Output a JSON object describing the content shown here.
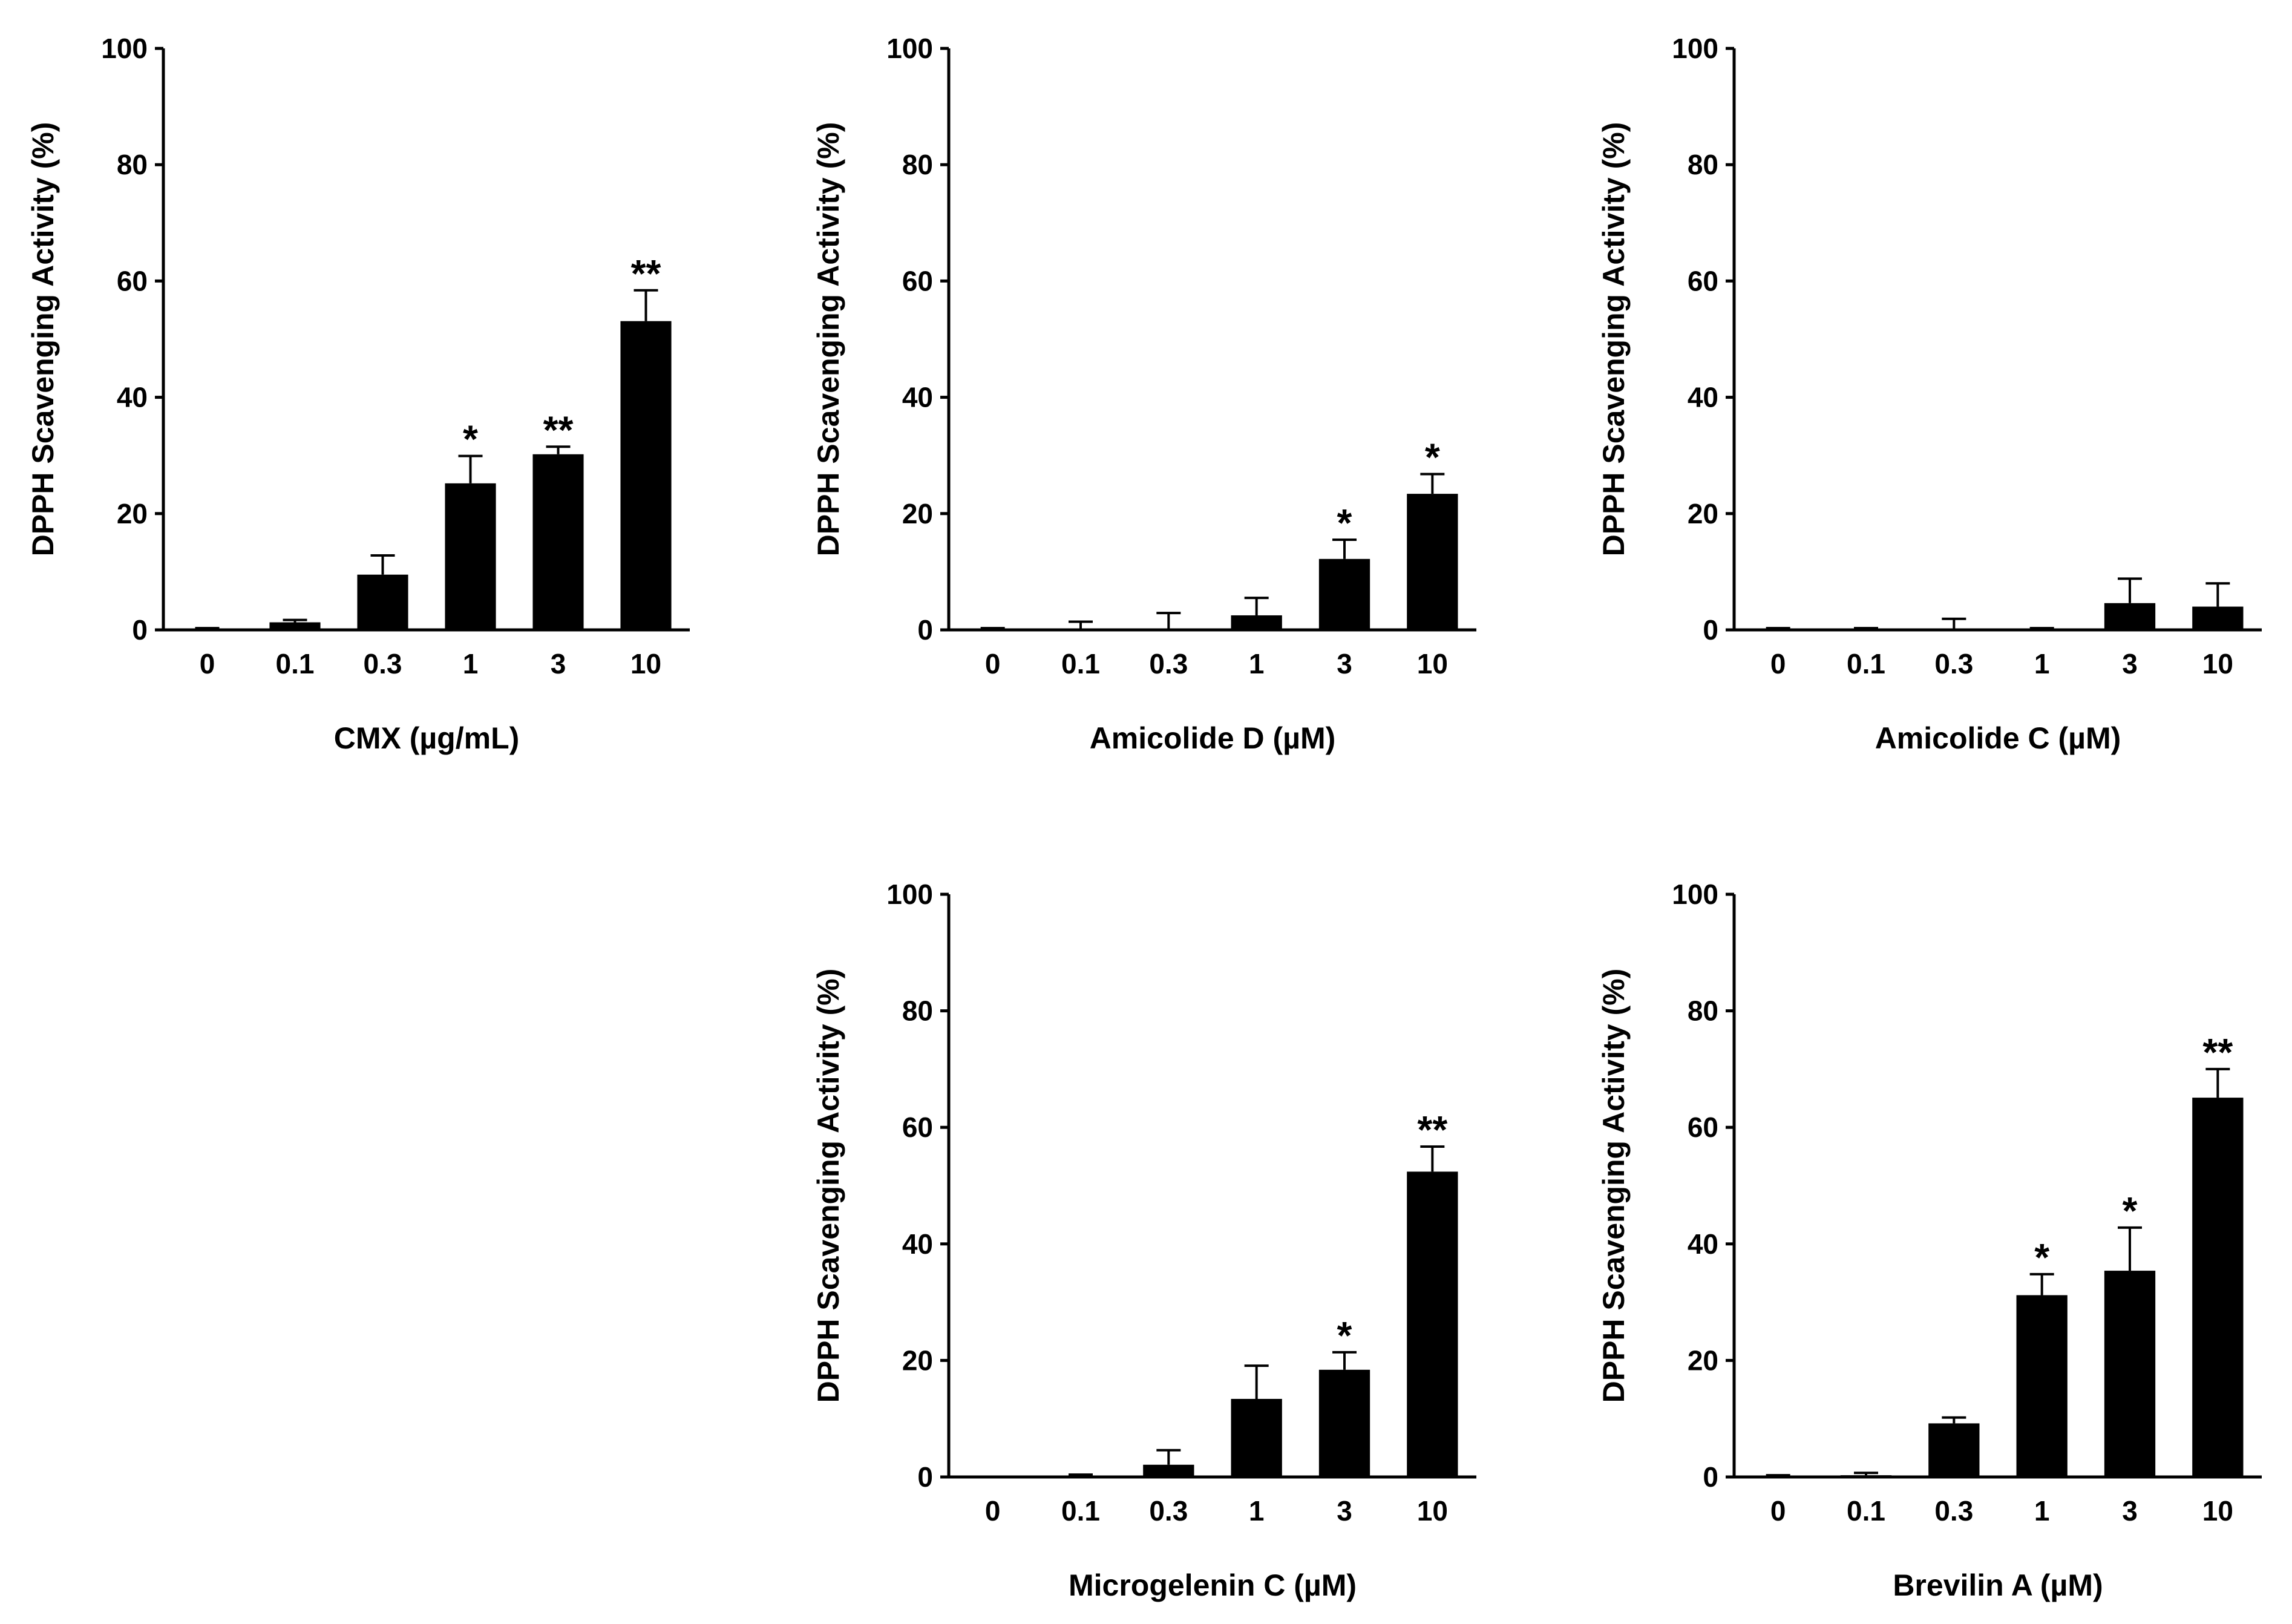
{
  "chart_data": [
    {
      "type": "bar",
      "xlabel": "CMX (µg/mL)",
      "ylabel": "DPPH Scavenging Activity (%)",
      "categories": [
        "0",
        "0.1",
        "0.3",
        "1",
        "3",
        "10"
      ],
      "values": [
        0.1,
        1.3,
        9.5,
        25.2,
        30.2,
        53.1
      ],
      "errors": [
        0.2,
        0.4,
        3.3,
        4.7,
        1.3,
        5.3
      ],
      "significance": [
        "",
        "",
        "",
        "*",
        "**",
        "**"
      ],
      "ylim": [
        0,
        100
      ],
      "yticks": [
        "0",
        "20",
        "40",
        "60",
        "80",
        "100"
      ],
      "color": "#000000"
    },
    {
      "type": "bar",
      "xlabel": "Amicolide D (µM)",
      "ylabel": "DPPH Scavenging Activity (%)",
      "categories": [
        "0",
        "0.1",
        "0.3",
        "1",
        "3",
        "10"
      ],
      "values": [
        0.1,
        0,
        0,
        2.5,
        12.2,
        23.4
      ],
      "errors": [
        0.2,
        1.4,
        2.9,
        3.0,
        3.3,
        3.4
      ],
      "significance": [
        "",
        "",
        "",
        "",
        "*",
        "*"
      ],
      "ylim": [
        0,
        100
      ],
      "yticks": [
        "0",
        "20",
        "40",
        "60",
        "80",
        "100"
      ],
      "color": "#000000"
    },
    {
      "type": "bar",
      "xlabel": "Amicolide C (µM)",
      "ylabel": "DPPH Scavenging Activity (%)",
      "categories": [
        "0",
        "0.1",
        "0.3",
        "1",
        "3",
        "10"
      ],
      "values": [
        0.1,
        0.1,
        0,
        0.1,
        4.6,
        4.0
      ],
      "errors": [
        0.2,
        0.2,
        1.9,
        0.2,
        4.2,
        4.0
      ],
      "significance": [
        "",
        "",
        "",
        "",
        "",
        ""
      ],
      "ylim": [
        0,
        100
      ],
      "yticks": [
        "0",
        "20",
        "40",
        "60",
        "80",
        "100"
      ],
      "color": "#000000"
    },
    {
      "type": "bar",
      "xlabel": "Microgelenin C (µM)",
      "ylabel": "DPPH Scavenging Activity (%)",
      "categories": [
        "0",
        "0.1",
        "0.3",
        "1",
        "3",
        "10"
      ],
      "values": [
        0,
        0.1,
        2.1,
        13.4,
        18.4,
        52.4
      ],
      "errors": [
        0,
        0.3,
        2.5,
        5.7,
        3.0,
        4.3
      ],
      "significance": [
        "",
        "",
        "",
        "",
        "*",
        "**"
      ],
      "ylim": [
        0,
        100
      ],
      "yticks": [
        "0",
        "20",
        "40",
        "60",
        "80",
        "100"
      ],
      "color": "#000000"
    },
    {
      "type": "bar",
      "xlabel": "Brevilin A (µM)",
      "ylabel": "DPPH Scavenging Activity (%)",
      "categories": [
        "0",
        "0.1",
        "0.3",
        "1",
        "3",
        "10"
      ],
      "values": [
        0.1,
        0.3,
        9.2,
        31.2,
        35.4,
        65.1
      ],
      "errors": [
        0.2,
        0.4,
        1.0,
        3.6,
        7.4,
        4.9
      ],
      "significance": [
        "",
        "",
        "",
        "*",
        "*",
        "**"
      ],
      "ylim": [
        0,
        100
      ],
      "yticks": [
        "0",
        "20",
        "40",
        "60",
        "80",
        "100"
      ],
      "color": "#000000"
    }
  ]
}
